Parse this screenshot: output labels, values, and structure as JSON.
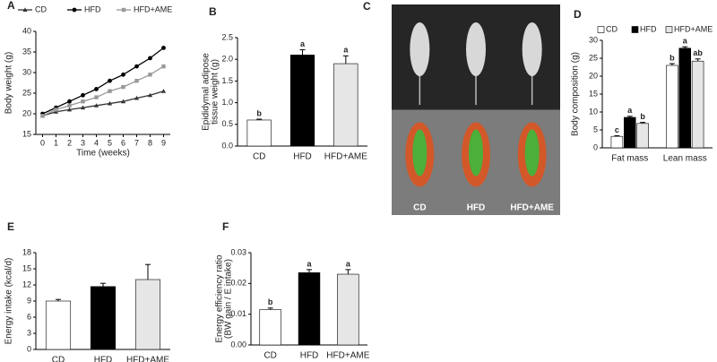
{
  "chart_data": [
    {
      "type": "line",
      "panel": "A",
      "ylabel": [
        "Body weight (g)"
      ],
      "xlabel": "Time (weeks)",
      "x": [
        0,
        1,
        2,
        3,
        4,
        5,
        6,
        7,
        8,
        9
      ],
      "xlim": [
        -0.5,
        9.5
      ],
      "xticks": [
        0,
        1,
        2,
        3,
        4,
        5,
        6,
        7,
        8,
        9
      ],
      "ylim": [
        15,
        40
      ],
      "yticks": [
        15,
        20,
        25,
        30,
        35,
        40
      ],
      "series": [
        {
          "name": "CD",
          "color": "#333333",
          "marker": "triangle",
          "values": [
            19.5,
            20.5,
            21,
            21.5,
            22,
            22.5,
            23,
            23.8,
            24.5,
            25.5
          ]
        },
        {
          "name": "HFD",
          "color": "#000000",
          "marker": "circle",
          "values": [
            20,
            21.5,
            23,
            24.5,
            26,
            28,
            29.5,
            31.5,
            33.5,
            36
          ]
        },
        {
          "name": "HFD+AME",
          "color": "#999999",
          "marker": "square",
          "values": [
            19.5,
            21,
            22,
            23,
            24,
            25.5,
            26.5,
            28,
            29.5,
            31.5
          ]
        }
      ]
    },
    {
      "type": "bar",
      "panel": "B",
      "ylabel": [
        "Epididymal adipose",
        "tissue weight (g)"
      ],
      "categories": [
        "CD",
        "HFD",
        "HFD+AME"
      ],
      "values": [
        0.6,
        2.1,
        1.9
      ],
      "errors": [
        0.02,
        0.12,
        0.18
      ],
      "letters": [
        "b",
        "a",
        "a"
      ],
      "colors": [
        "#ffffff",
        "#000000",
        "#e6e6e6"
      ],
      "ylim": [
        0,
        2.5
      ],
      "yticks": [
        {
          "value": 0,
          "label": "0.0"
        },
        0.5,
        {
          "value": 1,
          "label": "1.0"
        },
        1.5,
        {
          "value": 2,
          "label": "2.0"
        },
        2.5
      ]
    },
    {
      "type": "image",
      "panel": "C",
      "categories": [
        "CD",
        "HFD",
        "HFD+AME"
      ]
    },
    {
      "type": "bar",
      "panel": "D",
      "ylabel": [
        "Body composition (g)"
      ],
      "categories": [
        "Fat mass",
        "Lean mass"
      ],
      "series": [
        {
          "name": "CD",
          "color": "#ffffff",
          "values": [
            3.2,
            23
          ],
          "errors": [
            0.2,
            0.5
          ],
          "letters": [
            "c",
            "b"
          ]
        },
        {
          "name": "HFD",
          "color": "#000000",
          "values": [
            8.5,
            27.8
          ],
          "errors": [
            0.3,
            0.4
          ],
          "letters": [
            "a",
            "a"
          ]
        },
        {
          "name": "HFD+AME",
          "color": "#e6e6e6",
          "values": [
            6.8,
            24.2
          ],
          "errors": [
            0.3,
            0.6
          ],
          "letters": [
            "b",
            "ab"
          ]
        }
      ],
      "ylim": [
        0,
        30
      ],
      "yticks": [
        0,
        5,
        10,
        15,
        20,
        25,
        30
      ]
    },
    {
      "type": "bar",
      "panel": "E",
      "ylabel": [
        "Energy intake (kcal/d)"
      ],
      "categories": [
        "CD",
        "HFD",
        "HFD+AME"
      ],
      "values": [
        9,
        11.7,
        13
      ],
      "errors": [
        0.3,
        0.6,
        2.8
      ],
      "colors": [
        "#ffffff",
        "#000000",
        "#e6e6e6"
      ],
      "ylim": [
        0,
        18
      ],
      "yticks": [
        0,
        3,
        6,
        9,
        12,
        15,
        18
      ]
    },
    {
      "type": "bar",
      "panel": "F",
      "ylabel": [
        "Energy efficiency ratio",
        "(BW gain / E intake)"
      ],
      "categories": [
        "CD",
        "HFD",
        "HFD+AME"
      ],
      "values": [
        0.0115,
        0.0235,
        0.023
      ],
      "errors": [
        0.0005,
        0.001,
        0.0015
      ],
      "letters": [
        "b",
        "a",
        "a"
      ],
      "colors": [
        "#ffffff",
        "#000000",
        "#e6e6e6"
      ],
      "ylim": [
        0,
        0.03
      ],
      "yticks": [
        {
          "value": 0,
          "label": "0.00"
        },
        {
          "value": 0.01,
          "label": "0.01"
        },
        {
          "value": 0.02,
          "label": "0.02"
        },
        {
          "value": 0.03,
          "label": "0.03"
        }
      ]
    }
  ]
}
